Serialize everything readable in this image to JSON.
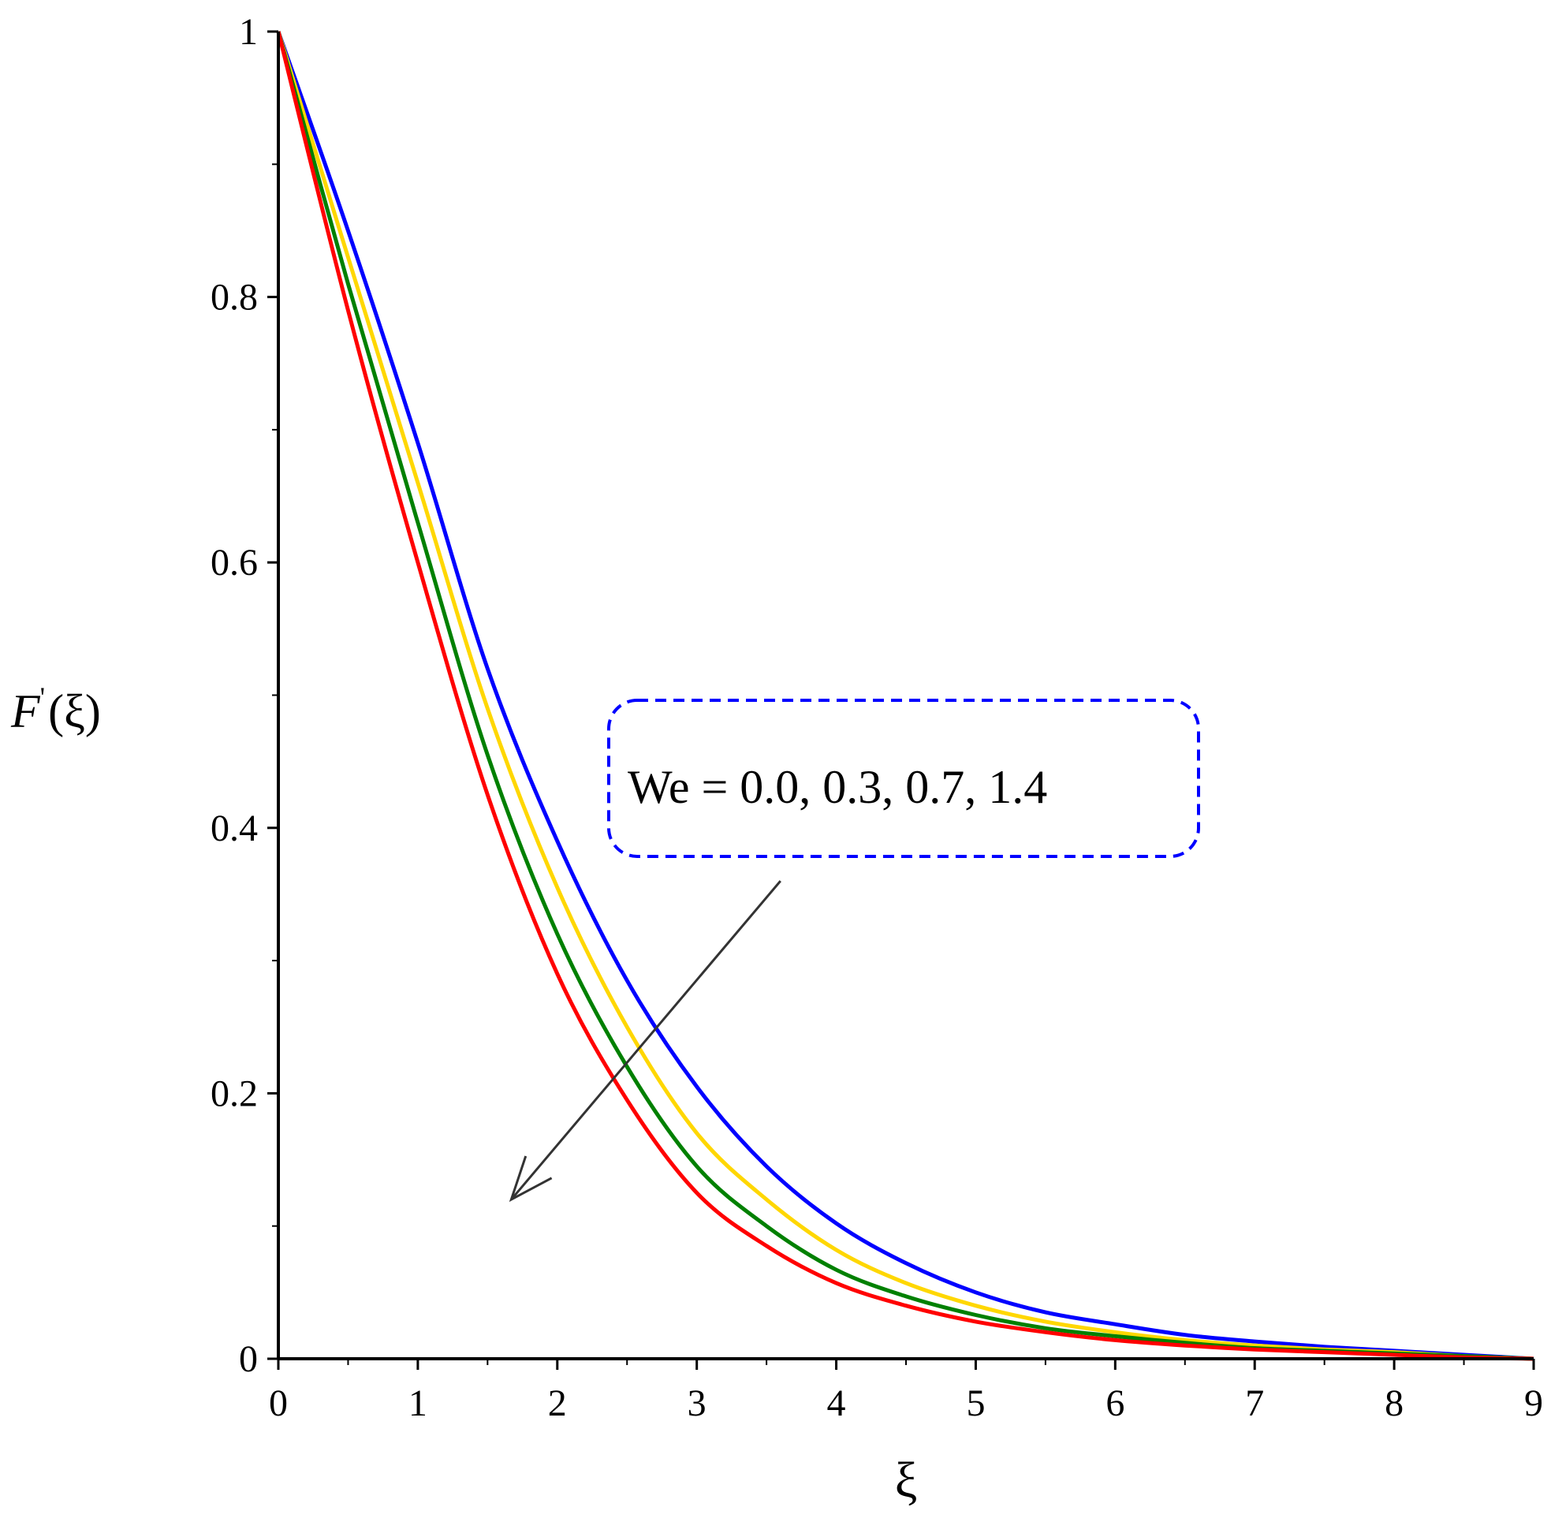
{
  "chart_data": {
    "type": "line",
    "title": "",
    "xlabel": "ξ",
    "ylabel": "F'(ξ)",
    "ylabel_parts": {
      "main": "F",
      "prime": "'",
      "open": "(",
      "var": "ξ",
      "close": ")"
    },
    "xlim": [
      0,
      9
    ],
    "ylim": [
      0,
      1
    ],
    "x_ticks": [
      0,
      1,
      2,
      3,
      4,
      5,
      6,
      7,
      8,
      9
    ],
    "x_tick_labels": [
      "0",
      "1",
      "2",
      "3",
      "4",
      "5",
      "6",
      "7",
      "8",
      "9"
    ],
    "y_ticks": [
      0,
      0.2,
      0.4,
      0.6,
      0.8,
      1
    ],
    "y_tick_labels": [
      "0",
      "0.2",
      "0.4",
      "0.6",
      "0.8",
      "1"
    ],
    "grid": false,
    "annotation": {
      "text": "We = 0.0, 0.3, 0.7, 1.4",
      "arrow_from": [
        3.6,
        0.36
      ],
      "arrow_to": [
        1.67,
        0.12
      ]
    },
    "series": [
      {
        "color": "#0000ff",
        "x": [
          0,
          0.5,
          1,
          1.5,
          2,
          2.5,
          3,
          3.5,
          4,
          4.5,
          5,
          5.5,
          6,
          6.5,
          7,
          7.5,
          8,
          8.5,
          9
        ],
        "y": [
          1.0,
          0.85,
          0.69,
          0.52,
          0.39,
          0.285,
          0.205,
          0.145,
          0.102,
          0.072,
          0.05,
          0.035,
          0.026,
          0.018,
          0.013,
          0.009,
          0.006,
          0.003,
          0.0
        ]
      },
      {
        "color": "#ffd700",
        "x": [
          0,
          0.5,
          1,
          1.5,
          2,
          2.5,
          3,
          3.5,
          4,
          4.5,
          5,
          5.5,
          6,
          6.5,
          7,
          7.5,
          8,
          8.5,
          9
        ],
        "y": [
          1.0,
          0.83,
          0.66,
          0.49,
          0.355,
          0.25,
          0.17,
          0.12,
          0.082,
          0.057,
          0.04,
          0.028,
          0.02,
          0.014,
          0.01,
          0.007,
          0.005,
          0.002,
          0.0
        ]
      },
      {
        "color": "#008000",
        "x": [
          0,
          0.5,
          1,
          1.5,
          2,
          2.5,
          3,
          3.5,
          4,
          4.5,
          5,
          5.5,
          6,
          6.5,
          7,
          7.5,
          8,
          8.5,
          9
        ],
        "y": [
          1.0,
          0.81,
          0.63,
          0.455,
          0.32,
          0.22,
          0.145,
          0.1,
          0.067,
          0.047,
          0.033,
          0.023,
          0.017,
          0.012,
          0.008,
          0.006,
          0.004,
          0.002,
          0.0
        ]
      },
      {
        "color": "#ff0000",
        "x": [
          0,
          0.5,
          1,
          1.5,
          2,
          2.5,
          3,
          3.5,
          4,
          4.5,
          5,
          5.5,
          6,
          6.5,
          7,
          7.5,
          8,
          8.5,
          9
        ],
        "y": [
          1.0,
          0.79,
          0.6,
          0.425,
          0.29,
          0.195,
          0.125,
          0.085,
          0.057,
          0.04,
          0.028,
          0.02,
          0.014,
          0.01,
          0.007,
          0.005,
          0.003,
          0.001,
          0.0
        ]
      }
    ]
  }
}
